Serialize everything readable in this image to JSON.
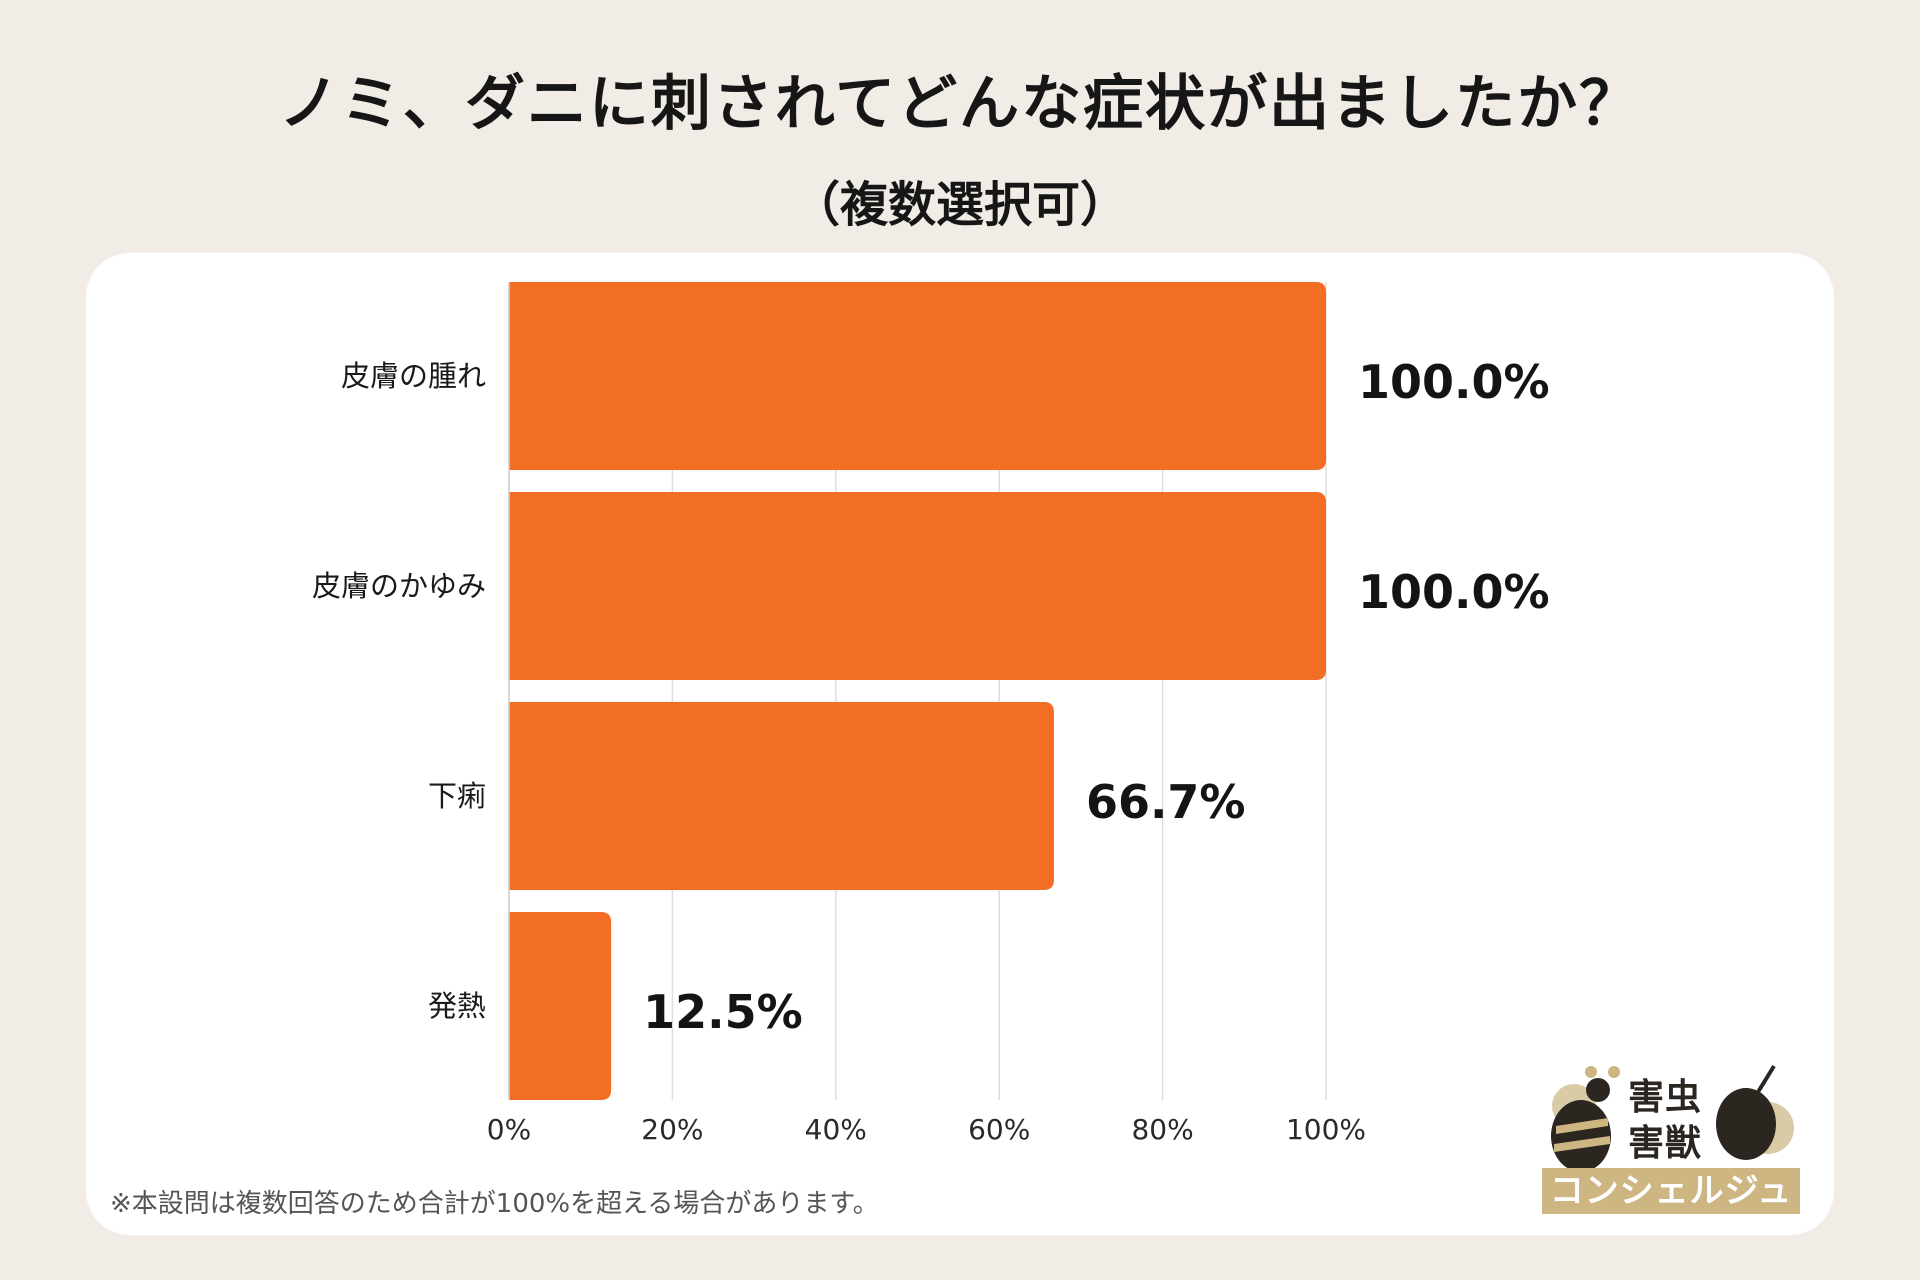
{
  "title": "ノミ、ダニに刺されてどんな症状が出ましたか？",
  "subtitle": "（複数選択可）",
  "footnote": "※本設問は複数回答のため合計が100%を超える場合があります。",
  "logo": {
    "line1": "害虫",
    "line2": "害獣",
    "band": "コンシェルジュ"
  },
  "colors": {
    "bar": "#f26e24",
    "background": "#f1ede6",
    "card": "#ffffff",
    "logo_gold": "#cdb682"
  },
  "chart_data": {
    "type": "bar",
    "orientation": "horizontal",
    "categories": [
      "皮膚の腫れ",
      "皮膚のかゆみ",
      "下痢",
      "発熱"
    ],
    "values": [
      100.0,
      100.0,
      66.7,
      12.5
    ],
    "value_labels": [
      "100.0%",
      "100.0%",
      "66.7%",
      "12.5%"
    ],
    "xlim": [
      0,
      100
    ],
    "x_ticks": [
      0,
      20,
      40,
      60,
      80,
      100
    ],
    "x_tick_labels": [
      "0%",
      "20%",
      "40%",
      "60%",
      "80%",
      "100%"
    ],
    "grid": "vertical"
  }
}
